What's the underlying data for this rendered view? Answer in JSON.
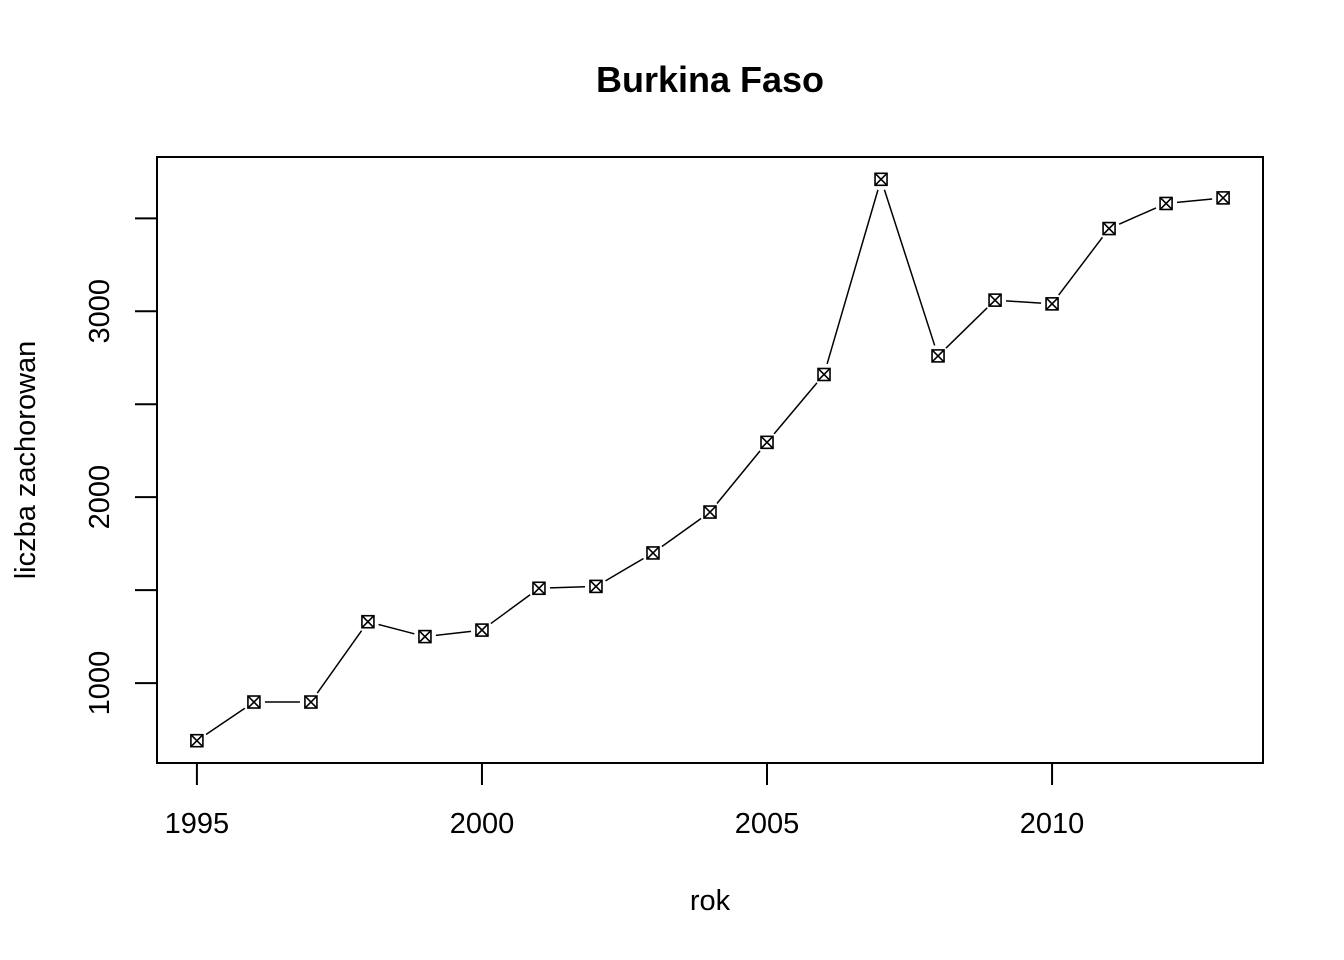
{
  "chart_data": {
    "type": "line",
    "title": "Burkina Faso",
    "xlabel": "rok",
    "ylabel": "liczba zachorowan",
    "xlim": [
      1994.3,
      2013.7
    ],
    "ylim": [
      570,
      3830
    ],
    "x_ticks": [
      1995,
      2000,
      2005,
      2010
    ],
    "y_ticks": [
      1000,
      1500,
      2000,
      2500,
      3000,
      3500
    ],
    "y_tick_labels": [
      "1000",
      "",
      "2000",
      "",
      "3000",
      ""
    ],
    "x": [
      1995,
      1996,
      1997,
      1998,
      1999,
      2000,
      2001,
      2002,
      2003,
      2004,
      2005,
      2006,
      2007,
      2008,
      2009,
      2010,
      2011,
      2012,
      2013
    ],
    "y": [
      690,
      898,
      898,
      1330,
      1250,
      1285,
      1510,
      1520,
      1700,
      1920,
      2295,
      2660,
      3710,
      2760,
      3060,
      3040,
      3445,
      3580,
      3610
    ],
    "marker": "boxed-x",
    "grid": false,
    "legend": "none"
  }
}
